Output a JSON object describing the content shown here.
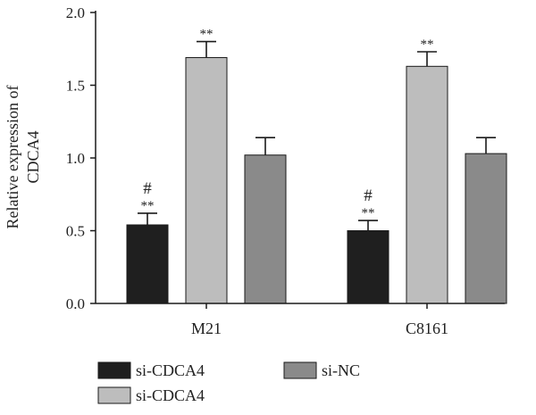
{
  "chart_data": {
    "type": "bar",
    "title": "",
    "xlabel": "",
    "ylabel": "Relative expression of CDCA4",
    "ylabel_lines": [
      "Relative expression of",
      "CDCA4"
    ],
    "ylim": [
      0,
      2.0
    ],
    "yticks": [
      "0.0",
      "0.5",
      "1.0",
      "1.5",
      "2.0"
    ],
    "categories": [
      "M21",
      "C8161"
    ],
    "series": [
      {
        "name": "si-CDCA4",
        "color": "#1f1f1f",
        "values": [
          0.54,
          0.5
        ],
        "errors": [
          0.08,
          0.07
        ],
        "annotations": [
          "**",
          "**"
        ],
        "annotations2": [
          "#",
          "#"
        ]
      },
      {
        "name": "si-CDCA4",
        "color": "#bdbdbd",
        "values": [
          1.69,
          1.63
        ],
        "errors": [
          0.11,
          0.1
        ],
        "annotations": [
          "**",
          "**"
        ],
        "annotations2": [
          "",
          ""
        ]
      },
      {
        "name": "si-NC",
        "color": "#8a8a8a",
        "values": [
          1.02,
          1.03
        ],
        "errors": [
          0.12,
          0.11
        ],
        "annotations": [
          "",
          ""
        ],
        "annotations2": [
          "",
          ""
        ]
      }
    ],
    "legend_position": "bottom",
    "grid": false
  }
}
